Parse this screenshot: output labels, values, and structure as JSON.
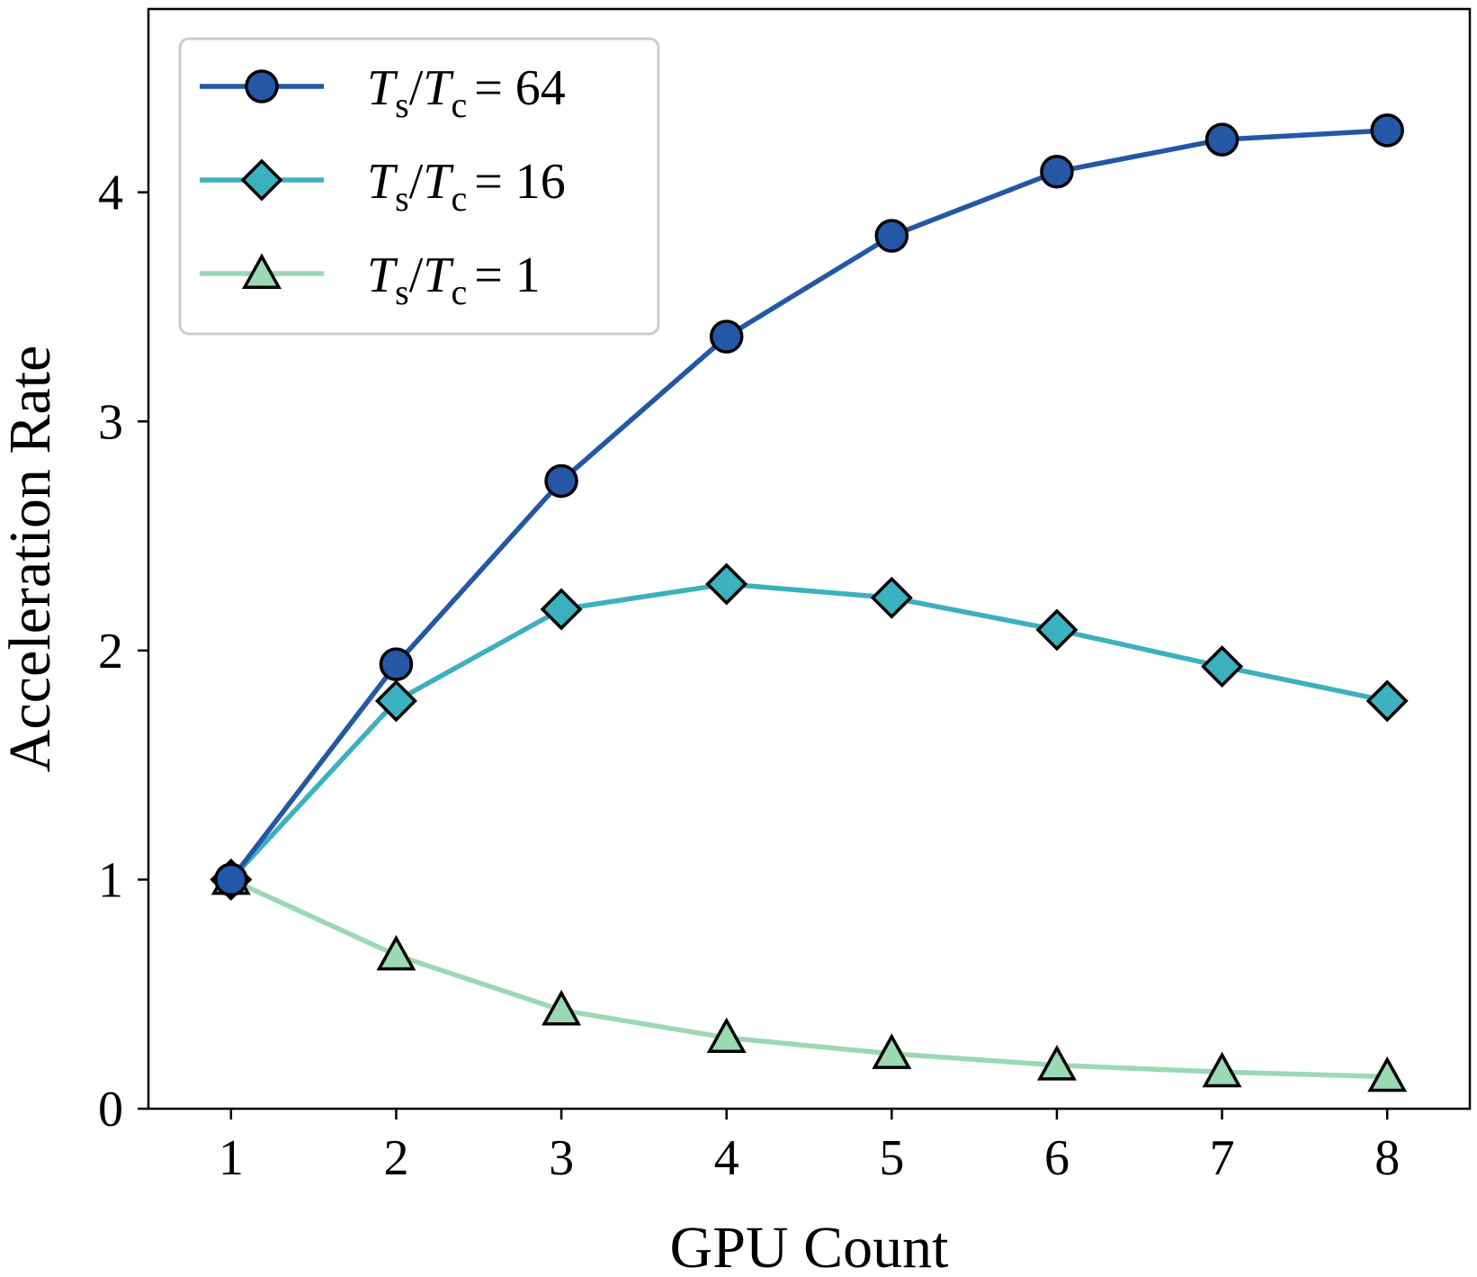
{
  "chart_data": {
    "type": "line",
    "title": "",
    "xlabel": "GPU Count",
    "ylabel": "Acceleration Rate",
    "x": [
      1,
      2,
      3,
      4,
      5,
      6,
      7,
      8
    ],
    "xticks": [
      "1",
      "2",
      "3",
      "4",
      "5",
      "6",
      "7",
      "8"
    ],
    "yticks": [
      "0",
      "1",
      "2",
      "3",
      "4"
    ],
    "xlim": [
      0.5,
      8.5
    ],
    "ylim": [
      0,
      4.8
    ],
    "grid": false,
    "legend_position": "top-left",
    "series": [
      {
        "name": "Ts/Tc = 64",
        "label_symbol": "T",
        "label_sub1": "s",
        "label_sub2": "c",
        "label_value": "= 64",
        "marker": "circle",
        "color": "#2457a6",
        "values": [
          1.0,
          1.94,
          2.74,
          3.37,
          3.81,
          4.09,
          4.23,
          4.27
        ]
      },
      {
        "name": "Ts/Tc = 16",
        "label_symbol": "T",
        "label_sub1": "s",
        "label_sub2": "c",
        "label_value": "= 16",
        "marker": "diamond",
        "color": "#3bb1c0",
        "values": [
          1.0,
          1.78,
          2.18,
          2.29,
          2.23,
          2.09,
          1.93,
          1.78
        ]
      },
      {
        "name": "Ts/Tc = 1",
        "label_symbol": "T",
        "label_sub1": "s",
        "label_sub2": "c",
        "label_value": "= 1",
        "marker": "triangle",
        "color": "#9bd8b4",
        "values": [
          1.0,
          0.67,
          0.43,
          0.31,
          0.24,
          0.19,
          0.16,
          0.14
        ]
      }
    ]
  }
}
